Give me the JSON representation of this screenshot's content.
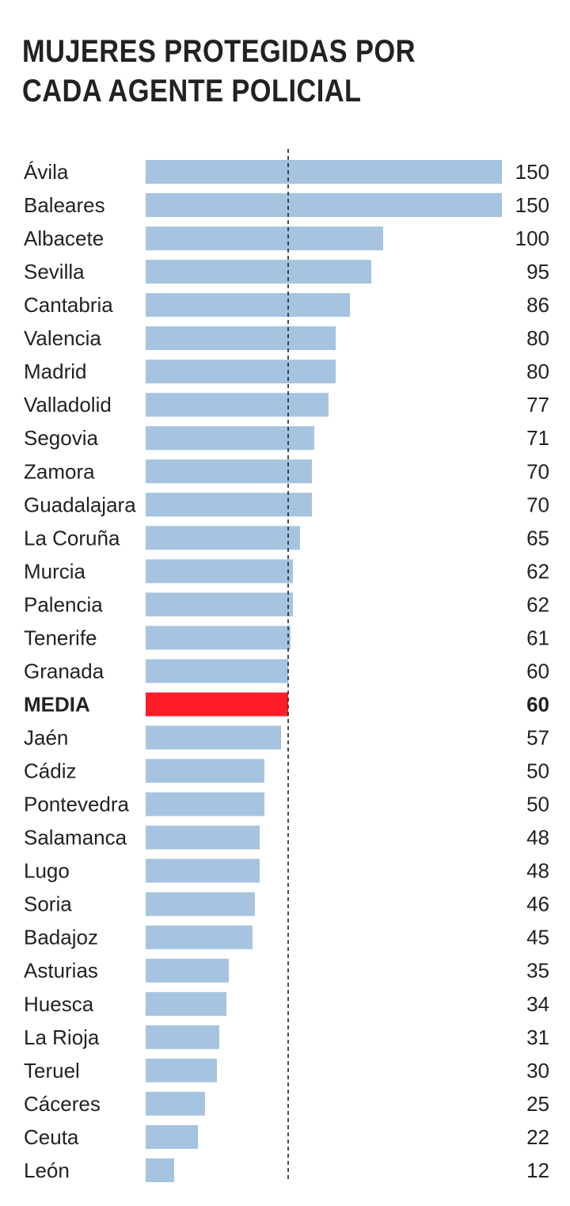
{
  "title": "MUJERES PROTEGIDAS POR CADA AGENTE POLICIAL",
  "colors": {
    "bar": "#a6c4e0",
    "highlight": "#ff1e28",
    "text": "#222222",
    "reference_line": "#222222"
  },
  "chart_data": {
    "type": "bar",
    "orientation": "horizontal",
    "categories": [
      "Ávila",
      "Baleares",
      "Albacete",
      "Sevilla",
      "Cantabria",
      "Valencia",
      "Madrid",
      "Valladolid",
      "Segovia",
      "Zamora",
      "Guadalajara",
      "La Coruña",
      "Murcia",
      "Palencia",
      "Tenerife",
      "Granada",
      "MEDIA",
      "Jaén",
      "Cádiz",
      "Pontevedra",
      "Salamanca",
      "Lugo",
      "Soria",
      "Badajoz",
      "Asturias",
      "Huesca",
      "La Rioja",
      "Teruel",
      "Cáceres",
      "Ceuta",
      "León"
    ],
    "values": [
      150,
      150,
      100,
      95,
      86,
      80,
      80,
      77,
      71,
      70,
      70,
      65,
      62,
      62,
      61,
      60,
      60,
      57,
      50,
      50,
      48,
      48,
      46,
      45,
      35,
      34,
      31,
      30,
      25,
      22,
      12
    ],
    "highlight_category": "MEDIA",
    "reference_line": 60,
    "xlim": [
      0,
      150
    ],
    "grid": false,
    "legend": "none"
  }
}
